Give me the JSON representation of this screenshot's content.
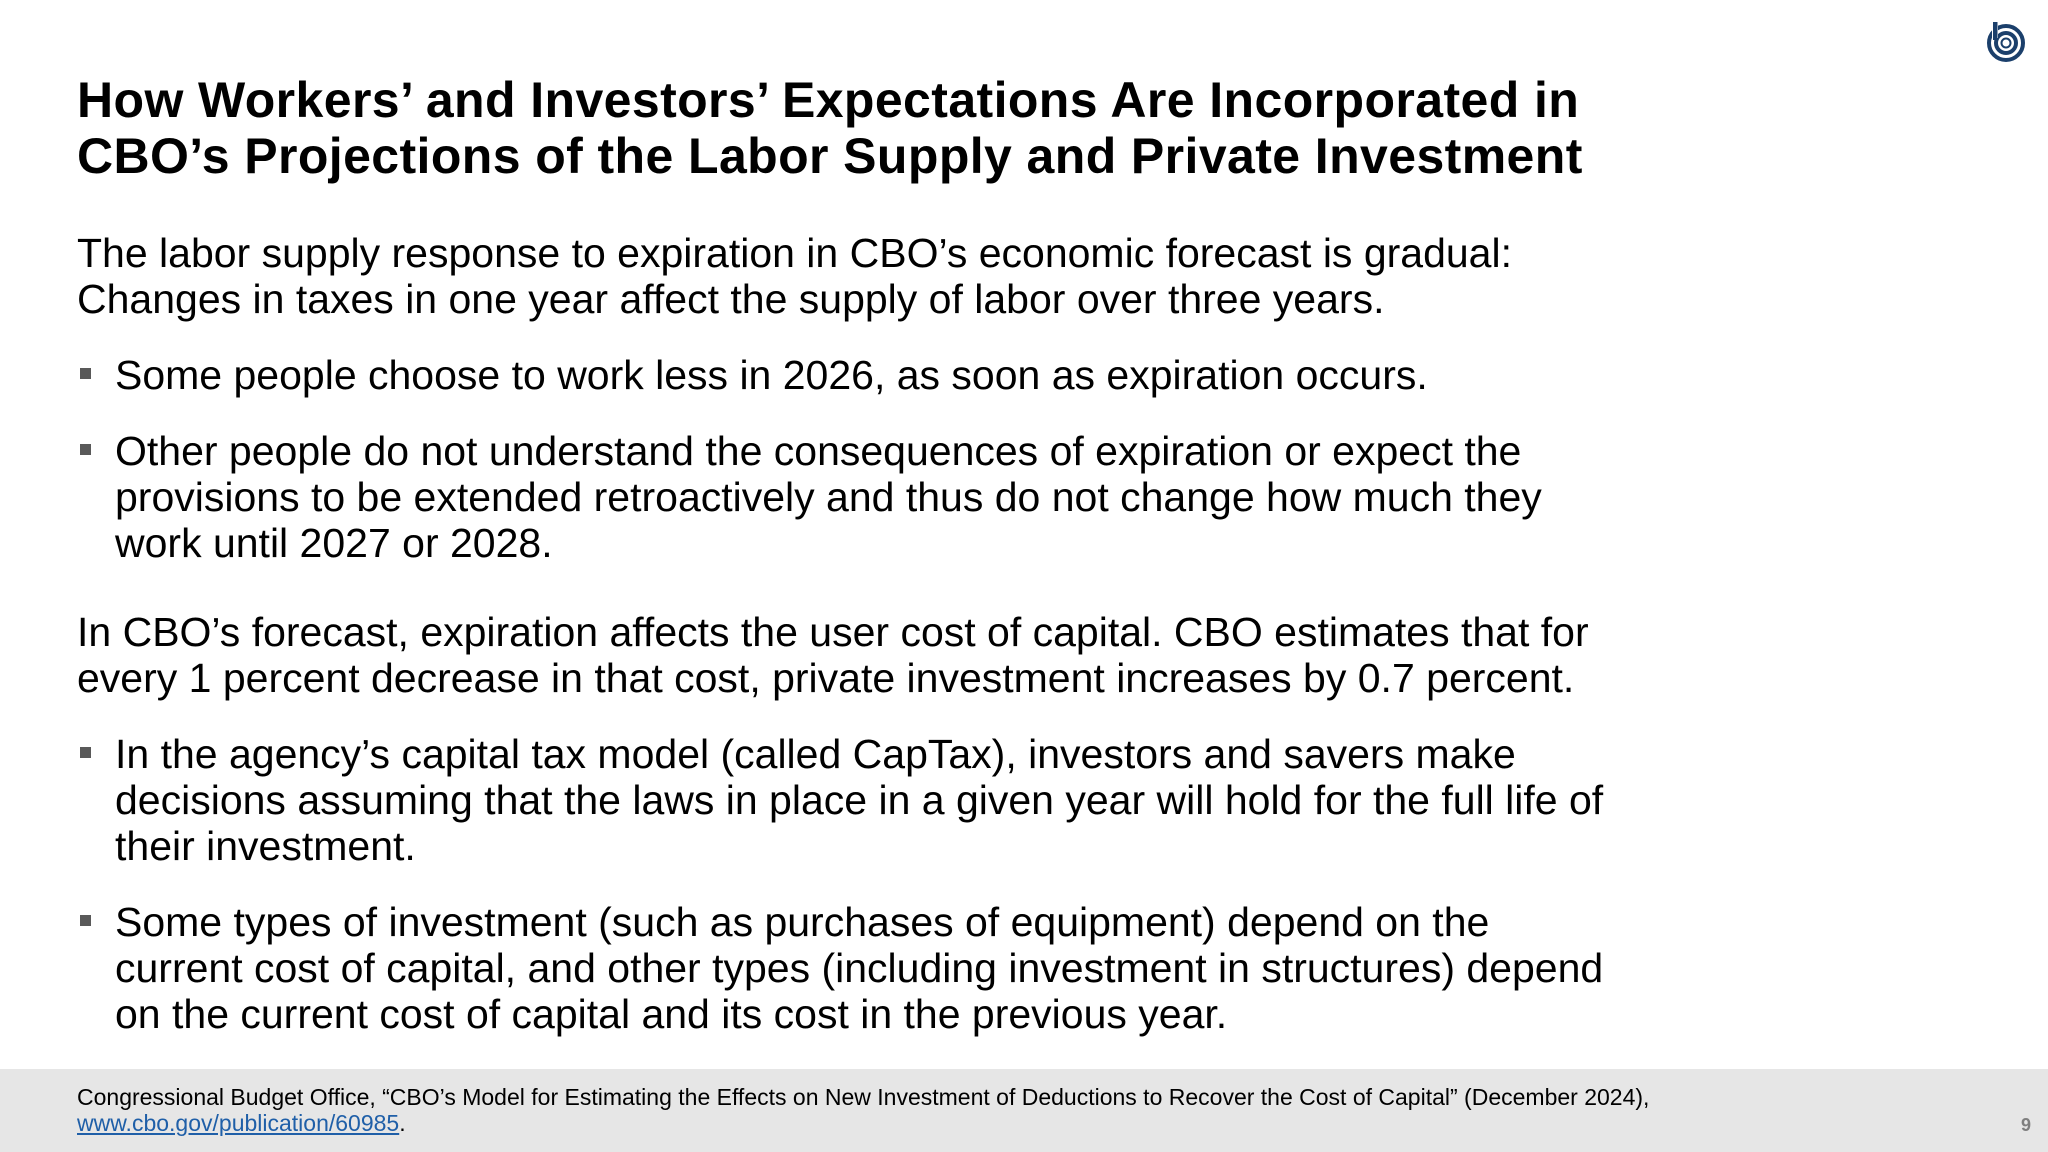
{
  "title": {
    "line1": "How Workers’ and Investors’ Expectations Are Incorporated in",
    "line2": "CBO’s Projections of the Labor Supply and Private Investment"
  },
  "paragraphs": [
    {
      "lines": [
        "The labor supply response to expiration in CBO’s economic forecast is gradual:",
        "Changes in taxes in one year affect the supply of labor over three years."
      ],
      "bullets": [
        {
          "lines": [
            "Some people choose to work less in 2026, as soon as expiration occurs."
          ]
        },
        {
          "lines": [
            "Other people do not understand the consequences of expiration or expect the",
            "provisions to be extended retroactively and thus do not change how much they",
            "work until 2027 or 2028."
          ]
        }
      ]
    },
    {
      "lines": [
        "In CBO’s forecast, expiration affects the user cost of capital. CBO estimates that for",
        "every 1 percent decrease in that cost, private investment increases by 0.7 percent."
      ],
      "bullets": [
        {
          "lines": [
            "In the agency’s capital tax model (called CapTax), investors and savers make",
            "decisions assuming that the laws in place in a given year will hold for the full life of",
            "their investment."
          ]
        },
        {
          "lines": [
            "Some types of investment (such as purchases of equipment) depend on the",
            "current cost of capital, and other types (including investment in structures) depend",
            "on the current cost of capital and its cost in the previous year."
          ]
        }
      ]
    }
  ],
  "footer": {
    "citation": "Congressional Budget Office, “CBO’s Model for Estimating the Effects on New Investment of Deductions to Recover the Cost of Capital” (December 2024),",
    "link_text": "www.cbo.gov/publication/60985",
    "link_suffix": "."
  },
  "page_number": "9",
  "icons": {
    "logo": "cbo-logo-icon",
    "bullet": "square-bullet-icon"
  },
  "colors": {
    "logo": "#1b3f6b",
    "link": "#1f5fa8",
    "footer_bg": "#e6e6e6",
    "bullet": "#595959",
    "page_number": "#7f7f7f"
  }
}
